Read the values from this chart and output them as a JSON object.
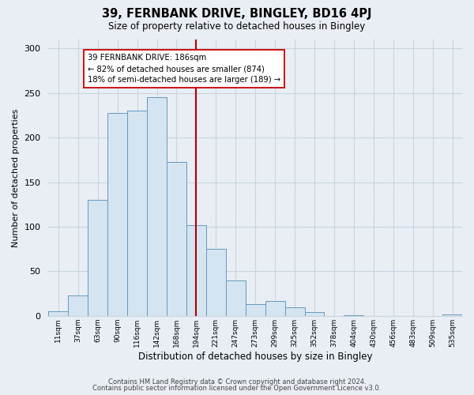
{
  "title": "39, FERNBANK DRIVE, BINGLEY, BD16 4PJ",
  "subtitle": "Size of property relative to detached houses in Bingley",
  "xlabel": "Distribution of detached houses by size in Bingley",
  "ylabel": "Number of detached properties",
  "bar_color": "#d4e4f0",
  "bar_edge_color": "#6699bb",
  "categories": [
    "11sqm",
    "37sqm",
    "63sqm",
    "90sqm",
    "116sqm",
    "142sqm",
    "168sqm",
    "194sqm",
    "221sqm",
    "247sqm",
    "273sqm",
    "299sqm",
    "325sqm",
    "352sqm",
    "378sqm",
    "404sqm",
    "430sqm",
    "456sqm",
    "483sqm",
    "509sqm",
    "535sqm"
  ],
  "values": [
    5,
    23,
    130,
    228,
    230,
    245,
    173,
    102,
    75,
    40,
    13,
    17,
    10,
    4,
    0,
    1,
    0,
    0,
    0,
    0,
    2
  ],
  "vline_x_index": 7,
  "vline_color": "#aa0000",
  "annotation_line1": "39 FERNBANK DRIVE: 186sqm",
  "annotation_line2": "← 82% of detached houses are smaller (874)",
  "annotation_line3": "18% of semi-detached houses are larger (189) →",
  "annotation_box_color": "white",
  "annotation_box_edge_color": "#cc0000",
  "ylim": [
    0,
    310
  ],
  "yticks": [
    0,
    50,
    100,
    150,
    200,
    250,
    300
  ],
  "footer1": "Contains HM Land Registry data © Crown copyright and database right 2024.",
  "footer2": "Contains public sector information licensed under the Open Government Licence v3.0.",
  "background_color": "#e8eef4",
  "grid_color": "#c8d4de"
}
